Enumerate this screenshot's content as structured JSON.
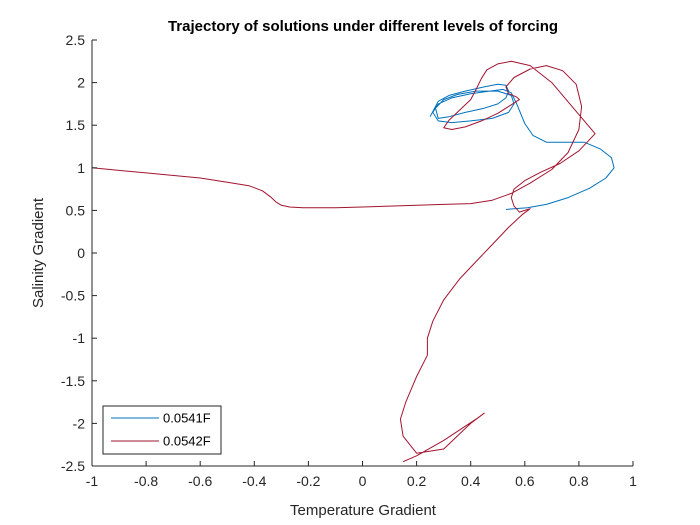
{
  "chart_data": {
    "type": "line",
    "title": "Trajectory of solutions under different levels of forcing",
    "xlabel": "Temperature Gradient",
    "ylabel": "Salinity Gradient",
    "xlim": [
      -1,
      1
    ],
    "ylim": [
      -2.5,
      2.5
    ],
    "xticks": [
      -1,
      -0.8,
      -0.6,
      -0.4,
      -0.2,
      0,
      0.2,
      0.4,
      0.6,
      0.8,
      1
    ],
    "xtick_labels": [
      "-1",
      "-0.8",
      "-0.6",
      "-0.4",
      "-0.2",
      "0",
      "0.2",
      "0.4",
      "0.6",
      "0.8",
      "1"
    ],
    "yticks": [
      -2.5,
      -2,
      -1.5,
      -1,
      -0.5,
      0,
      0.5,
      1,
      1.5,
      2,
      2.5
    ],
    "ytick_labels": [
      "-2.5",
      "-2",
      "-1.5",
      "-1",
      "-0.5",
      "0",
      "0.5",
      "1",
      "1.5",
      "2",
      "2.5"
    ],
    "grid": false,
    "legend_position": "bottom-left",
    "series": [
      {
        "name": "0.0541F",
        "color": "#0072BD",
        "x": [
          0.25,
          0.28,
          0.32,
          0.38,
          0.45,
          0.5,
          0.53,
          0.54,
          0.53,
          0.5,
          0.45,
          0.38,
          0.32,
          0.28,
          0.27,
          0.3,
          0.35,
          0.42,
          0.5,
          0.55,
          0.56,
          0.54,
          0.48,
          0.4,
          0.33,
          0.28,
          0.26,
          0.28,
          0.33,
          0.4,
          0.47,
          0.52,
          0.55,
          0.57,
          0.6,
          0.63,
          0.68,
          0.75,
          0.82,
          0.88,
          0.92,
          0.93,
          0.9,
          0.84,
          0.76,
          0.68,
          0.61,
          0.56,
          0.53
        ],
        "y": [
          1.6,
          1.78,
          1.85,
          1.9,
          1.95,
          1.98,
          1.97,
          1.9,
          1.82,
          1.75,
          1.7,
          1.65,
          1.6,
          1.58,
          1.7,
          1.8,
          1.86,
          1.9,
          1.9,
          1.85,
          1.75,
          1.65,
          1.58,
          1.55,
          1.53,
          1.55,
          1.65,
          1.75,
          1.82,
          1.87,
          1.9,
          1.92,
          1.88,
          1.75,
          1.52,
          1.38,
          1.3,
          1.3,
          1.3,
          1.22,
          1.12,
          1.0,
          0.88,
          0.76,
          0.65,
          0.57,
          0.53,
          0.52,
          0.51
        ]
      },
      {
        "name": "0.0542F",
        "color": "#A2142F",
        "x": [
          -1.0,
          -0.8,
          -0.6,
          -0.5,
          -0.42,
          -0.37,
          -0.34,
          -0.32,
          -0.3,
          -0.27,
          -0.22,
          -0.1,
          0.0,
          0.1,
          0.2,
          0.3,
          0.4,
          0.48,
          0.55,
          0.62,
          0.7,
          0.76,
          0.8,
          0.81,
          0.79,
          0.74,
          0.68,
          0.62,
          0.56,
          0.53,
          0.54,
          0.57,
          0.58,
          0.55,
          0.5,
          0.44,
          0.38,
          0.33,
          0.3,
          0.32,
          0.36,
          0.4,
          0.42,
          0.44,
          0.46,
          0.5,
          0.55,
          0.62,
          0.7,
          0.78,
          0.86,
          0.8,
          0.73,
          0.66,
          0.6,
          0.56,
          0.55,
          0.56,
          0.58,
          0.6,
          0.62,
          0.59,
          0.54,
          0.48,
          0.42,
          0.36,
          0.3,
          0.26,
          0.24,
          0.24,
          0.2,
          0.16,
          0.14,
          0.15,
          0.2,
          0.3,
          0.4,
          0.45,
          0.42,
          0.3,
          0.2,
          0.15
        ],
        "y": [
          1.0,
          0.94,
          0.88,
          0.83,
          0.79,
          0.73,
          0.66,
          0.6,
          0.56,
          0.54,
          0.53,
          0.53,
          0.54,
          0.55,
          0.56,
          0.57,
          0.58,
          0.62,
          0.7,
          0.82,
          0.98,
          1.18,
          1.45,
          1.72,
          1.98,
          2.14,
          2.2,
          2.16,
          2.06,
          1.95,
          1.87,
          1.83,
          1.8,
          1.74,
          1.64,
          1.55,
          1.48,
          1.45,
          1.47,
          1.56,
          1.68,
          1.8,
          1.92,
          2.05,
          2.15,
          2.22,
          2.25,
          2.2,
          2.0,
          1.7,
          1.4,
          1.2,
          1.05,
          0.95,
          0.85,
          0.75,
          0.65,
          0.55,
          0.48,
          0.5,
          0.52,
          0.45,
          0.3,
          0.1,
          -0.1,
          -0.3,
          -0.55,
          -0.8,
          -1.0,
          -1.2,
          -1.45,
          -1.75,
          -1.95,
          -2.15,
          -2.35,
          -2.3,
          -2.0,
          -1.88,
          -1.95,
          -2.2,
          -2.38,
          -2.45
        ]
      }
    ]
  }
}
